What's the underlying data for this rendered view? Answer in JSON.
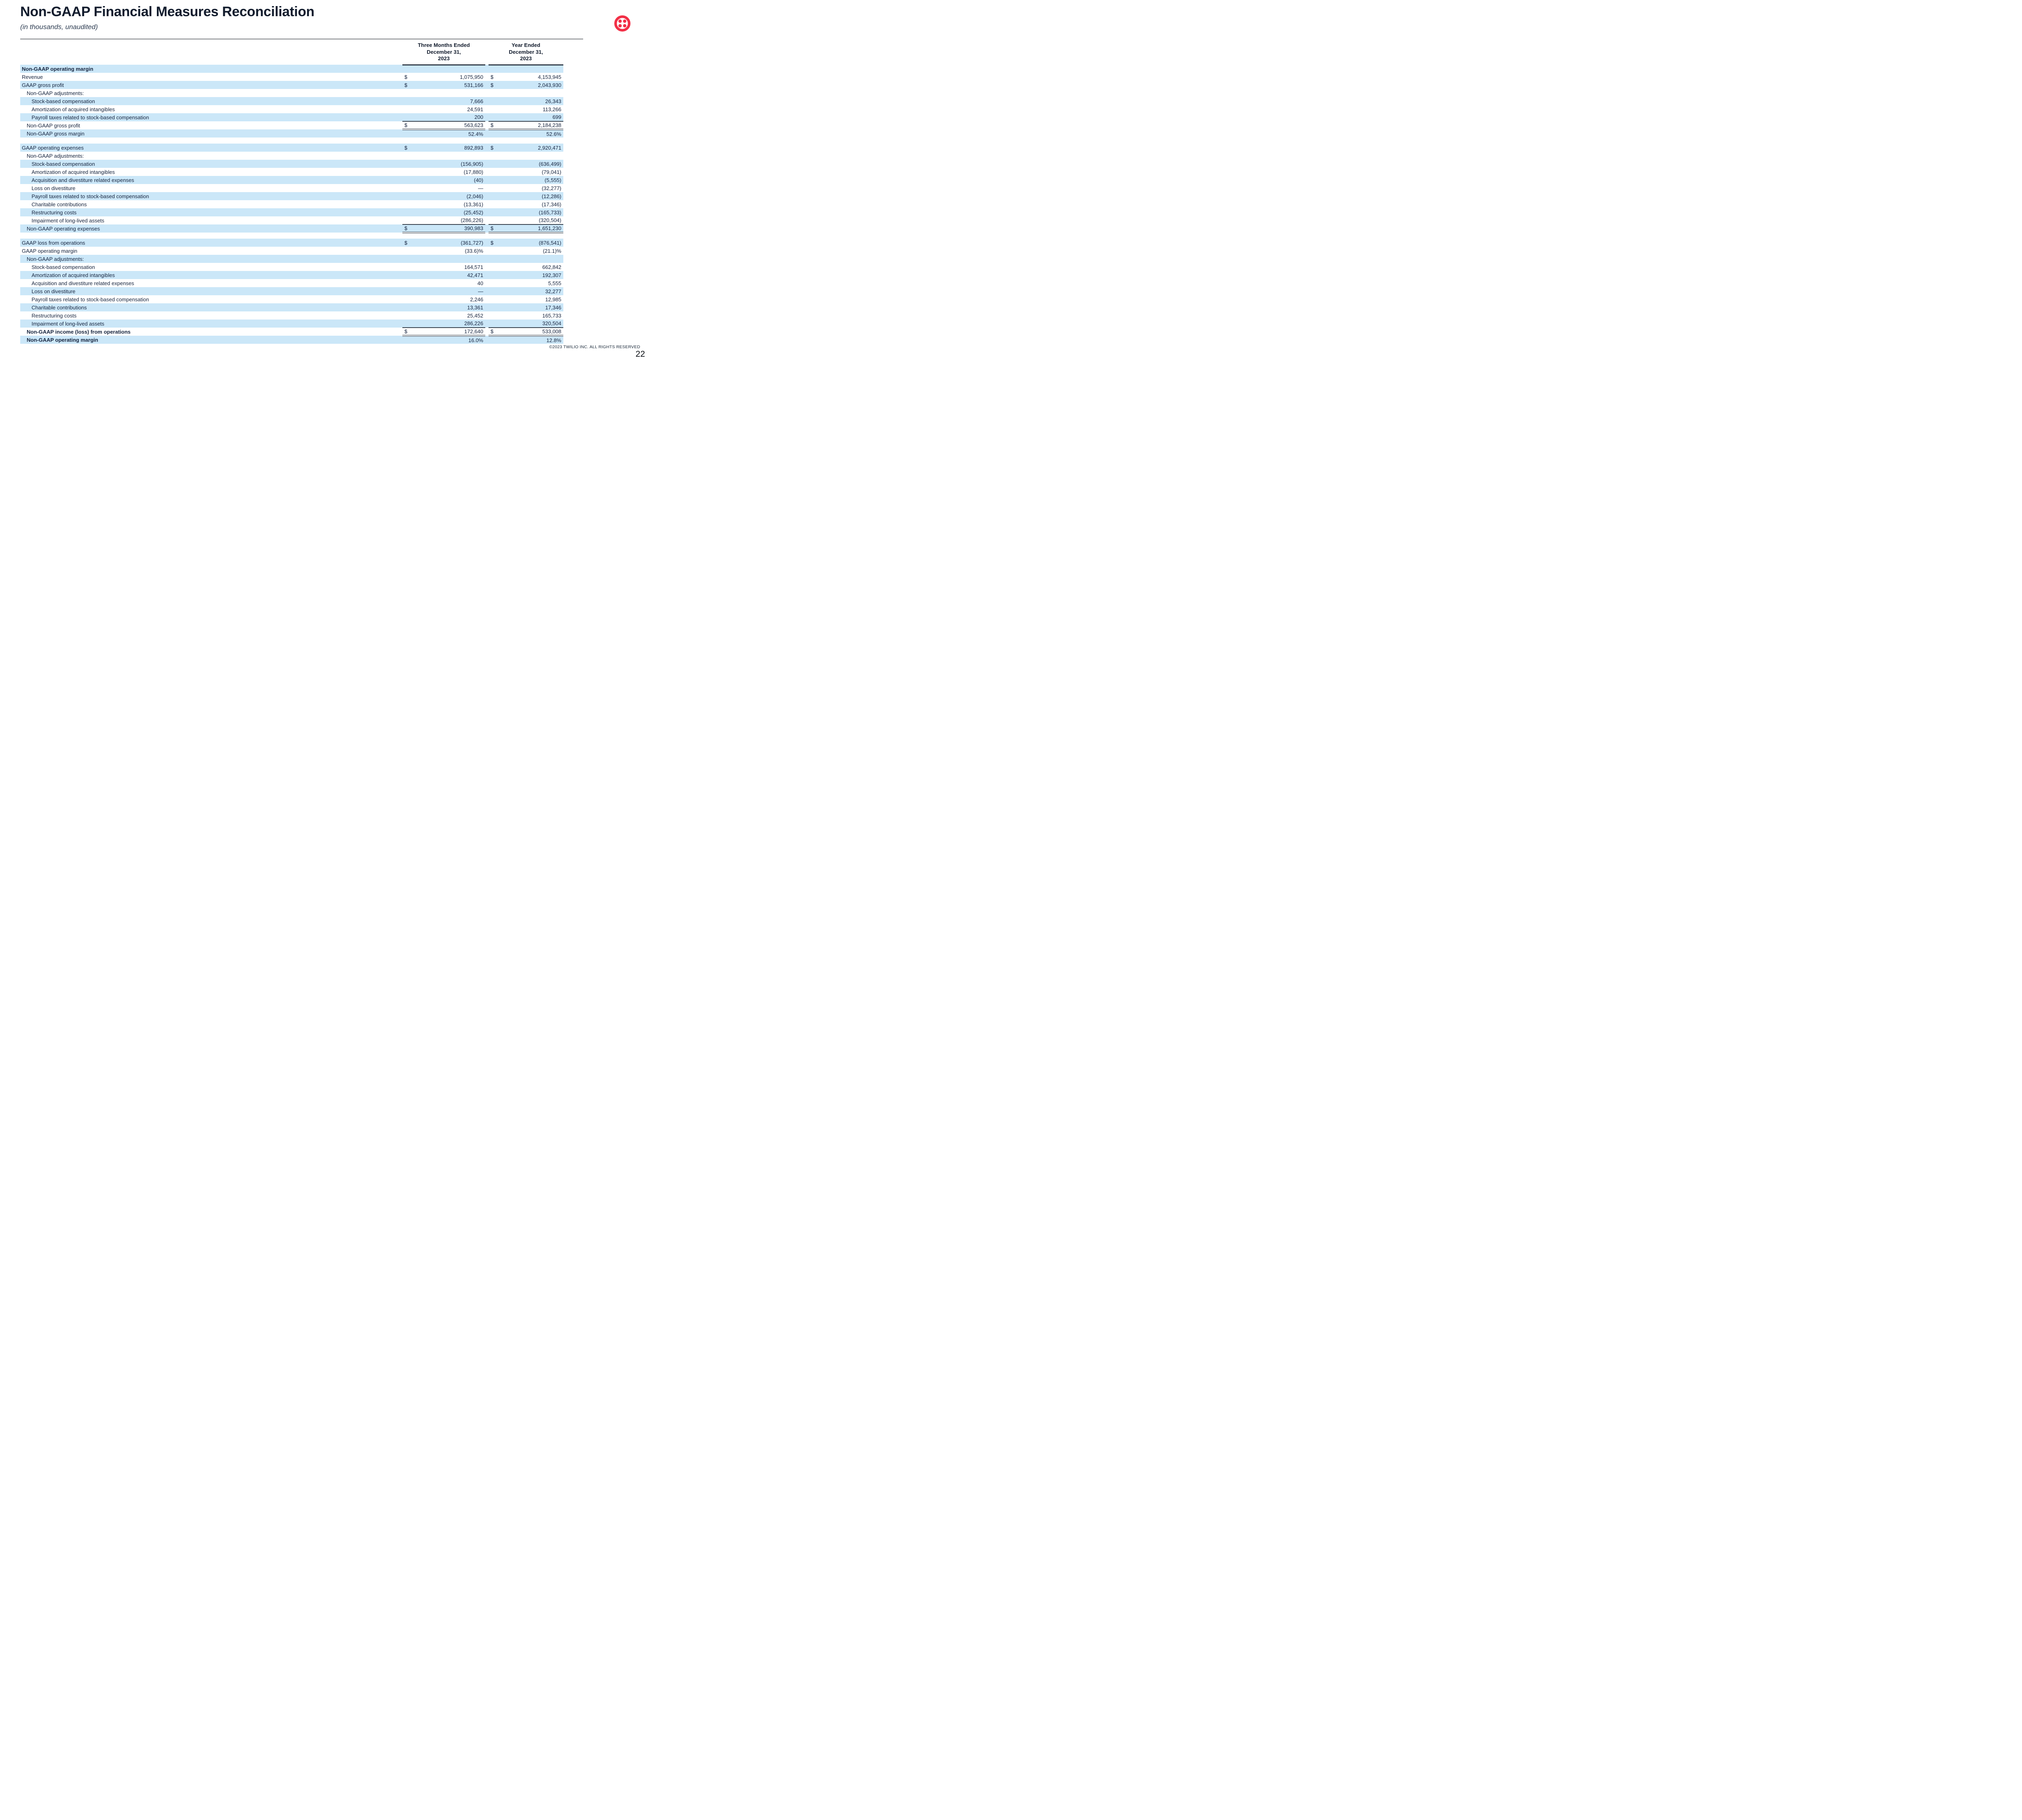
{
  "header": {
    "title": "Non-GAAP Financial Measures Reconciliation",
    "subtitle": "(in thousands, unaudited)"
  },
  "logo": {
    "name": "twilio-logo",
    "color": "#F22F46"
  },
  "colors": {
    "row_highlight": "#cbe7f8",
    "text_navy": "#17253f",
    "rule_dark": "#39434f",
    "rule_gray": "#a7a9ac"
  },
  "table": {
    "period_headers": [
      "Three Months Ended\nDecember 31,\n2023",
      "Year Ended\nDecember 31,\n2023"
    ],
    "rows": [
      {
        "label": "Non-GAAP operating margin",
        "ind": 0,
        "bold": true,
        "c": [
          "",
          "",
          "",
          ""
        ]
      },
      {
        "label": "Revenue",
        "ind": 0,
        "c": [
          "$",
          "1,075,950",
          "$",
          "4,153,945"
        ]
      },
      {
        "label": "GAAP gross profit",
        "ind": 0,
        "c": [
          "$",
          "531,166",
          "$",
          "2,043,930"
        ]
      },
      {
        "label": "Non-GAAP adjustments:",
        "ind": 1,
        "c": [
          "",
          "",
          "",
          ""
        ]
      },
      {
        "label": "Stock-based compensation",
        "ind": 2,
        "c": [
          "",
          "7,666",
          "",
          "26,343"
        ]
      },
      {
        "label": "Amortization of acquired intangibles",
        "ind": 2,
        "c": [
          "",
          "24,591",
          "",
          "113,266"
        ]
      },
      {
        "label": "Payroll taxes related to stock-based compensation",
        "ind": 2,
        "c": [
          "",
          "200",
          "",
          "699"
        ]
      },
      {
        "label": "Non-GAAP gross profit",
        "ind": 1,
        "total": true,
        "c": [
          "$",
          "563,623",
          "$",
          "2,184,238"
        ]
      },
      {
        "label": "Non-GAAP gross margin",
        "ind": 1,
        "c": [
          "",
          "52.4%",
          "",
          "52.6%"
        ]
      },
      {
        "t": "gap"
      },
      {
        "label": "GAAP operating expenses",
        "ind": 0,
        "c": [
          "$",
          "892,893",
          "$",
          "2,920,471"
        ]
      },
      {
        "label": "Non-GAAP adjustments:",
        "ind": 1,
        "c": [
          "",
          "",
          "",
          ""
        ]
      },
      {
        "label": "Stock-based compensation",
        "ind": 2,
        "c": [
          "",
          "(156,905)",
          "",
          "(636,499)"
        ]
      },
      {
        "label": "Amortization of acquired intangibles",
        "ind": 2,
        "c": [
          "",
          "(17,880)",
          "",
          "(79,041)"
        ]
      },
      {
        "label": "Acquisition and divestiture related expenses",
        "ind": 2,
        "c": [
          "",
          "(40)",
          "",
          "(5,555)"
        ]
      },
      {
        "label": "Loss on divestiture",
        "ind": 2,
        "c": [
          "",
          "—",
          "",
          "(32,277)"
        ]
      },
      {
        "label": "Payroll taxes related to stock-based compensation",
        "ind": 2,
        "c": [
          "",
          "(2,046)",
          "",
          "(12,286)"
        ]
      },
      {
        "label": "Charitable contributions",
        "ind": 2,
        "c": [
          "",
          "(13,361)",
          "",
          "(17,346)"
        ]
      },
      {
        "label": "Restructuring costs",
        "ind": 2,
        "c": [
          "",
          "(25,452)",
          "",
          "(165,733)"
        ]
      },
      {
        "label": "Impairment of long-lived assets",
        "ind": 2,
        "c": [
          "",
          "(286,226)",
          "",
          "(320,504)"
        ]
      },
      {
        "label": "Non-GAAP operating expenses",
        "ind": 1,
        "total": true,
        "c": [
          "$",
          "390,983",
          "$",
          "1,651,230"
        ]
      },
      {
        "t": "gap"
      },
      {
        "label": "GAAP loss from operations",
        "ind": 0,
        "c": [
          "$",
          "(361,727)",
          "$",
          "(876,541)"
        ]
      },
      {
        "label": "GAAP operating margin",
        "ind": 0,
        "c": [
          "",
          "(33.6)%",
          "",
          "(21.1)%"
        ]
      },
      {
        "label": "Non-GAAP adjustments:",
        "ind": 1,
        "c": [
          "",
          "",
          "",
          ""
        ]
      },
      {
        "label": "Stock-based compensation",
        "ind": 2,
        "c": [
          "",
          "164,571",
          "",
          "662,842"
        ]
      },
      {
        "label": "Amortization of acquired intangibles",
        "ind": 2,
        "c": [
          "",
          "42,471",
          "",
          "192,307"
        ]
      },
      {
        "label": "Acquisition and divestiture related expenses",
        "ind": 2,
        "c": [
          "",
          "40",
          "",
          "5,555"
        ]
      },
      {
        "label": "Loss on divestiture",
        "ind": 2,
        "c": [
          "",
          "—",
          "",
          "32,277"
        ]
      },
      {
        "label": "Payroll taxes related to stock-based compensation",
        "ind": 2,
        "c": [
          "",
          "2,246",
          "",
          "12,985"
        ]
      },
      {
        "label": "Charitable contributions",
        "ind": 2,
        "c": [
          "",
          "13,361",
          "",
          "17,346"
        ]
      },
      {
        "label": "Restructuring costs",
        "ind": 2,
        "c": [
          "",
          "25,452",
          "",
          "165,733"
        ]
      },
      {
        "label": "Impairment of long-lived assets",
        "ind": 2,
        "c": [
          "",
          "286,226",
          "",
          "320,504"
        ]
      },
      {
        "label": "Non-GAAP income (loss) from operations",
        "ind": 1,
        "bold": true,
        "total": true,
        "c": [
          "$",
          "172,640",
          "$",
          "533,008"
        ]
      },
      {
        "label": "Non-GAAP operating margin",
        "ind": 1,
        "bold": true,
        "c": [
          "",
          "16.0%",
          "",
          "12.8%"
        ]
      }
    ]
  },
  "footer": {
    "copyright": "©2023 TWILIO INC. ALL RIGHTS RESERVED",
    "page_number": "22"
  }
}
